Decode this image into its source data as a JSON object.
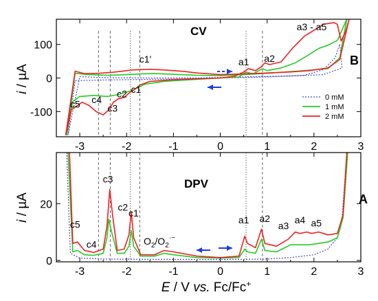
{
  "chart_data": [
    {
      "panel": "B",
      "title": "CV",
      "type": "line",
      "xlim": [
        -3.5,
        3.0
      ],
      "ylim": [
        -175,
        175
      ],
      "ylabel_var": "i",
      "ylabel_unit": "µA",
      "yticks": [
        -100,
        0,
        100
      ],
      "xticks": [
        -3,
        -2,
        -1,
        0,
        1,
        2,
        3
      ],
      "xtick_labels": [
        "-3",
        "-2",
        "-1",
        "0",
        "1",
        "2",
        "3"
      ],
      "legend": {
        "position": "bottom-right",
        "items": [
          "0 mM",
          "1 mM",
          "2 mM"
        ]
      },
      "peak_labels": [
        {
          "text": "c5",
          "x": -3.1,
          "y": -88
        },
        {
          "text": "c4",
          "x": -2.64,
          "y": -75
        },
        {
          "text": "c3",
          "x": -2.3,
          "y": -100
        },
        {
          "text": "c2",
          "x": -2.1,
          "y": -57
        },
        {
          "text": "c1",
          "x": -1.8,
          "y": -44
        },
        {
          "text": "c1'",
          "x": -1.6,
          "y": 46
        },
        {
          "text": "a1",
          "x": 0.5,
          "y": 38
        },
        {
          "text": "a2",
          "x": 1.05,
          "y": 48
        },
        {
          "text": "a3 - a5",
          "x": 1.95,
          "y": 142
        }
      ],
      "series": [
        {
          "name": "0 mM",
          "color": "#4646c8",
          "style": "dotted",
          "forward": [
            [
              -3.25,
              -170
            ],
            [
              -3.1,
              -8
            ],
            [
              -2.5,
              -6
            ],
            [
              -1.0,
              -3
            ],
            [
              0.0,
              0
            ],
            [
              1.0,
              3
            ],
            [
              1.8,
              8
            ],
            [
              2.2,
              25
            ],
            [
              2.45,
              60
            ],
            [
              2.55,
              100
            ]
          ],
          "reverse": [
            [
              2.55,
              100
            ],
            [
              2.6,
              30
            ],
            [
              2.2,
              10
            ],
            [
              1.5,
              6
            ],
            [
              0.5,
              3
            ],
            [
              -0.5,
              0
            ],
            [
              -1.5,
              0
            ],
            [
              -2.5,
              1
            ],
            [
              -3.0,
              4
            ],
            [
              -3.25,
              -170
            ]
          ]
        },
        {
          "name": "1 mM",
          "color": "#22cc22",
          "style": "solid",
          "forward": [
            [
              -3.28,
              -170
            ],
            [
              -3.15,
              -70
            ],
            [
              -3.0,
              -55
            ],
            [
              -2.7,
              -52
            ],
            [
              -2.4,
              -55
            ],
            [
              -2.2,
              -50
            ],
            [
              -2.0,
              -42
            ],
            [
              -1.85,
              -35
            ],
            [
              -1.6,
              -18
            ],
            [
              -1.2,
              -10
            ],
            [
              -0.5,
              -4
            ],
            [
              0.0,
              0
            ],
            [
              0.4,
              3
            ],
            [
              0.55,
              18
            ],
            [
              0.7,
              12
            ],
            [
              0.9,
              28
            ],
            [
              1.0,
              22
            ],
            [
              1.3,
              30
            ],
            [
              1.6,
              45
            ],
            [
              1.9,
              70
            ],
            [
              2.1,
              88
            ],
            [
              2.3,
              98
            ],
            [
              2.5,
              112
            ],
            [
              2.62,
              150
            ],
            [
              2.7,
              175
            ]
          ],
          "reverse": [
            [
              2.7,
              175
            ],
            [
              2.55,
              60
            ],
            [
              2.3,
              28
            ],
            [
              1.8,
              22
            ],
            [
              1.4,
              18
            ],
            [
              1.0,
              14
            ],
            [
              0.5,
              10
            ],
            [
              0.0,
              7
            ],
            [
              -0.5,
              8
            ],
            [
              -1.0,
              11
            ],
            [
              -1.4,
              13
            ],
            [
              -1.7,
              12
            ],
            [
              -2.0,
              10
            ],
            [
              -2.4,
              8
            ],
            [
              -2.8,
              10
            ],
            [
              -3.1,
              14
            ],
            [
              -3.28,
              -170
            ]
          ]
        },
        {
          "name": "2 mM",
          "color": "#ee2020",
          "style": "solid",
          "forward": [
            [
              -3.3,
              -170
            ],
            [
              -3.18,
              -95
            ],
            [
              -3.05,
              -82
            ],
            [
              -2.95,
              -72
            ],
            [
              -2.8,
              -82
            ],
            [
              -2.65,
              -100
            ],
            [
              -2.5,
              -110
            ],
            [
              -2.38,
              -95
            ],
            [
              -2.28,
              -72
            ],
            [
              -2.18,
              -62
            ],
            [
              -2.05,
              -58
            ],
            [
              -1.95,
              -45
            ],
            [
              -1.85,
              -36
            ],
            [
              -1.7,
              -20
            ],
            [
              -1.5,
              -10
            ],
            [
              -1.0,
              -5
            ],
            [
              -0.4,
              -2
            ],
            [
              0.0,
              0
            ],
            [
              0.3,
              5
            ],
            [
              0.5,
              18
            ],
            [
              0.6,
              28
            ],
            [
              0.75,
              22
            ],
            [
              0.88,
              34
            ],
            [
              0.95,
              45
            ],
            [
              1.05,
              40
            ],
            [
              1.3,
              48
            ],
            [
              1.55,
              90
            ],
            [
              1.8,
              125
            ],
            [
              2.0,
              142
            ],
            [
              2.2,
              160
            ],
            [
              2.42,
              165
            ],
            [
              2.5,
              160
            ],
            [
              2.58,
              110
            ],
            [
              2.68,
              140
            ],
            [
              2.75,
              175
            ]
          ],
          "reverse": [
            [
              2.75,
              175
            ],
            [
              2.55,
              55
            ],
            [
              2.3,
              30
            ],
            [
              1.9,
              22
            ],
            [
              1.5,
              18
            ],
            [
              1.0,
              15
            ],
            [
              0.5,
              12
            ],
            [
              0.0,
              10
            ],
            [
              -0.5,
              15
            ],
            [
              -0.8,
              20
            ],
            [
              -1.0,
              22
            ],
            [
              -1.2,
              24
            ],
            [
              -1.5,
              26
            ],
            [
              -1.7,
              25
            ],
            [
              -1.9,
              24
            ],
            [
              -2.1,
              20
            ],
            [
              -2.3,
              17
            ],
            [
              -2.6,
              14
            ],
            [
              -2.9,
              13
            ],
            [
              -3.1,
              20
            ],
            [
              -3.3,
              -170
            ]
          ]
        }
      ]
    },
    {
      "panel": "A",
      "title": "DPV",
      "type": "line",
      "xlim": [
        -3.5,
        3.0
      ],
      "ylim": [
        -0.5,
        38
      ],
      "ylabel_var": "i",
      "ylabel_unit": "µA",
      "yticks": [
        0,
        20
      ],
      "xticks": [
        -3,
        -2,
        -1,
        0,
        1,
        2,
        3
      ],
      "xtick_labels": [
        "-3",
        "-2",
        "-1",
        "0",
        "1",
        "2",
        "3"
      ],
      "xlabel_var": "E",
      "xlabel_unit": "V",
      "xlabel_vs": "vs.",
      "xlabel_ref": "Fc/Fc",
      "xlabel_ref_sup": "+",
      "annotation": {
        "text": "O",
        "sub1": "2",
        "mid": "/O",
        "sub2": "2",
        "sup": "·−",
        "x": -1.3,
        "y": 5.5
      },
      "peak_labels": [
        {
          "text": "c5",
          "x": -3.1,
          "y": 11.5
        },
        {
          "text": "c4",
          "x": -2.75,
          "y": 4.5
        },
        {
          "text": "c3",
          "x": -2.4,
          "y": 27.5
        },
        {
          "text": "c2",
          "x": -2.08,
          "y": 17.5
        },
        {
          "text": "c1",
          "x": -1.85,
          "y": 15.5
        },
        {
          "text": "a1",
          "x": 0.5,
          "y": 13.0
        },
        {
          "text": "a2",
          "x": 0.95,
          "y": 13.5
        },
        {
          "text": "a3",
          "x": 1.35,
          "y": 11.0
        },
        {
          "text": "a4",
          "x": 1.7,
          "y": 13.0
        },
        {
          "text": "a5",
          "x": 2.05,
          "y": 12.0
        }
      ],
      "series": [
        {
          "name": "0 mM",
          "color": "#4646c8",
          "style": "dotted",
          "points": [
            [
              -3.28,
              38
            ],
            [
              -3.2,
              2.5
            ],
            [
              -3.0,
              0.8
            ],
            [
              -2.5,
              0.5
            ],
            [
              -1.5,
              0.4
            ],
            [
              0.0,
              0.3
            ],
            [
              1.0,
              0.5
            ],
            [
              1.5,
              1.0
            ],
            [
              2.0,
              2.0
            ],
            [
              2.3,
              4.0
            ],
            [
              2.5,
              8.0
            ],
            [
              2.6,
              15
            ],
            [
              2.7,
              38
            ]
          ]
        },
        {
          "name": "1 mM",
          "color": "#22cc22",
          "style": "solid",
          "points": [
            [
              -3.25,
              38
            ],
            [
              -3.15,
              3.0
            ],
            [
              -3.05,
              3.5
            ],
            [
              -2.9,
              2.0
            ],
            [
              -2.7,
              1.8
            ],
            [
              -2.5,
              2.5
            ],
            [
              -2.42,
              8.0
            ],
            [
              -2.38,
              14.5
            ],
            [
              -2.32,
              10.0
            ],
            [
              -2.2,
              2.5
            ],
            [
              -2.05,
              2.5
            ],
            [
              -1.95,
              5.0
            ],
            [
              -1.9,
              10.5
            ],
            [
              -1.85,
              5.0
            ],
            [
              -1.7,
              1.5
            ],
            [
              -1.4,
              1.5
            ],
            [
              -1.2,
              2.5
            ],
            [
              -1.0,
              2.0
            ],
            [
              -0.5,
              1.0
            ],
            [
              0.0,
              0.8
            ],
            [
              0.4,
              1.0
            ],
            [
              0.52,
              4.0
            ],
            [
              0.58,
              3.0
            ],
            [
              0.75,
              2.5
            ],
            [
              0.88,
              7.5
            ],
            [
              0.95,
              3.5
            ],
            [
              1.2,
              3.0
            ],
            [
              1.5,
              5.5
            ],
            [
              1.7,
              5.5
            ],
            [
              1.9,
              5.5
            ],
            [
              2.1,
              6.0
            ],
            [
              2.3,
              6.5
            ],
            [
              2.5,
              8.0
            ],
            [
              2.62,
              15
            ],
            [
              2.72,
              38
            ]
          ]
        },
        {
          "name": "2 mM",
          "color": "#ee2020",
          "style": "solid",
          "points": [
            [
              -3.22,
              38
            ],
            [
              -3.15,
              6.0
            ],
            [
              -3.05,
              6.5
            ],
            [
              -2.9,
              3.5
            ],
            [
              -2.7,
              2.8
            ],
            [
              -2.5,
              4.0
            ],
            [
              -2.42,
              12.0
            ],
            [
              -2.36,
              25.0
            ],
            [
              -2.3,
              16.0
            ],
            [
              -2.2,
              3.5
            ],
            [
              -2.05,
              4.0
            ],
            [
              -1.95,
              9.0
            ],
            [
              -1.9,
              17.0
            ],
            [
              -1.85,
              8.0
            ],
            [
              -1.7,
              2.0
            ],
            [
              -1.4,
              2.0
            ],
            [
              -1.2,
              3.5
            ],
            [
              -1.0,
              3.0
            ],
            [
              -0.5,
              1.5
            ],
            [
              0.0,
              1.0
            ],
            [
              0.4,
              1.5
            ],
            [
              0.52,
              8.5
            ],
            [
              0.58,
              6.0
            ],
            [
              0.75,
              4.5
            ],
            [
              0.88,
              11.0
            ],
            [
              0.95,
              6.0
            ],
            [
              1.2,
              5.0
            ],
            [
              1.45,
              7.5
            ],
            [
              1.6,
              10.0
            ],
            [
              1.7,
              9.5
            ],
            [
              1.85,
              10.0
            ],
            [
              1.95,
              9.5
            ],
            [
              2.1,
              10.0
            ],
            [
              2.3,
              9.0
            ],
            [
              2.5,
              9.5
            ],
            [
              2.62,
              16
            ],
            [
              2.7,
              38
            ]
          ]
        }
      ]
    }
  ],
  "guide_lines": [
    {
      "x": -2.6,
      "style": "dashed"
    },
    {
      "x": -2.35,
      "style": "dashed"
    },
    {
      "x": -1.92,
      "style": "dotted"
    },
    {
      "x": -1.72,
      "style": "dashed"
    },
    {
      "x": 0.55,
      "style": "dotted"
    },
    {
      "x": 0.9,
      "style": "dashed"
    }
  ],
  "sweep_arrows_color": "#1e3cdc"
}
